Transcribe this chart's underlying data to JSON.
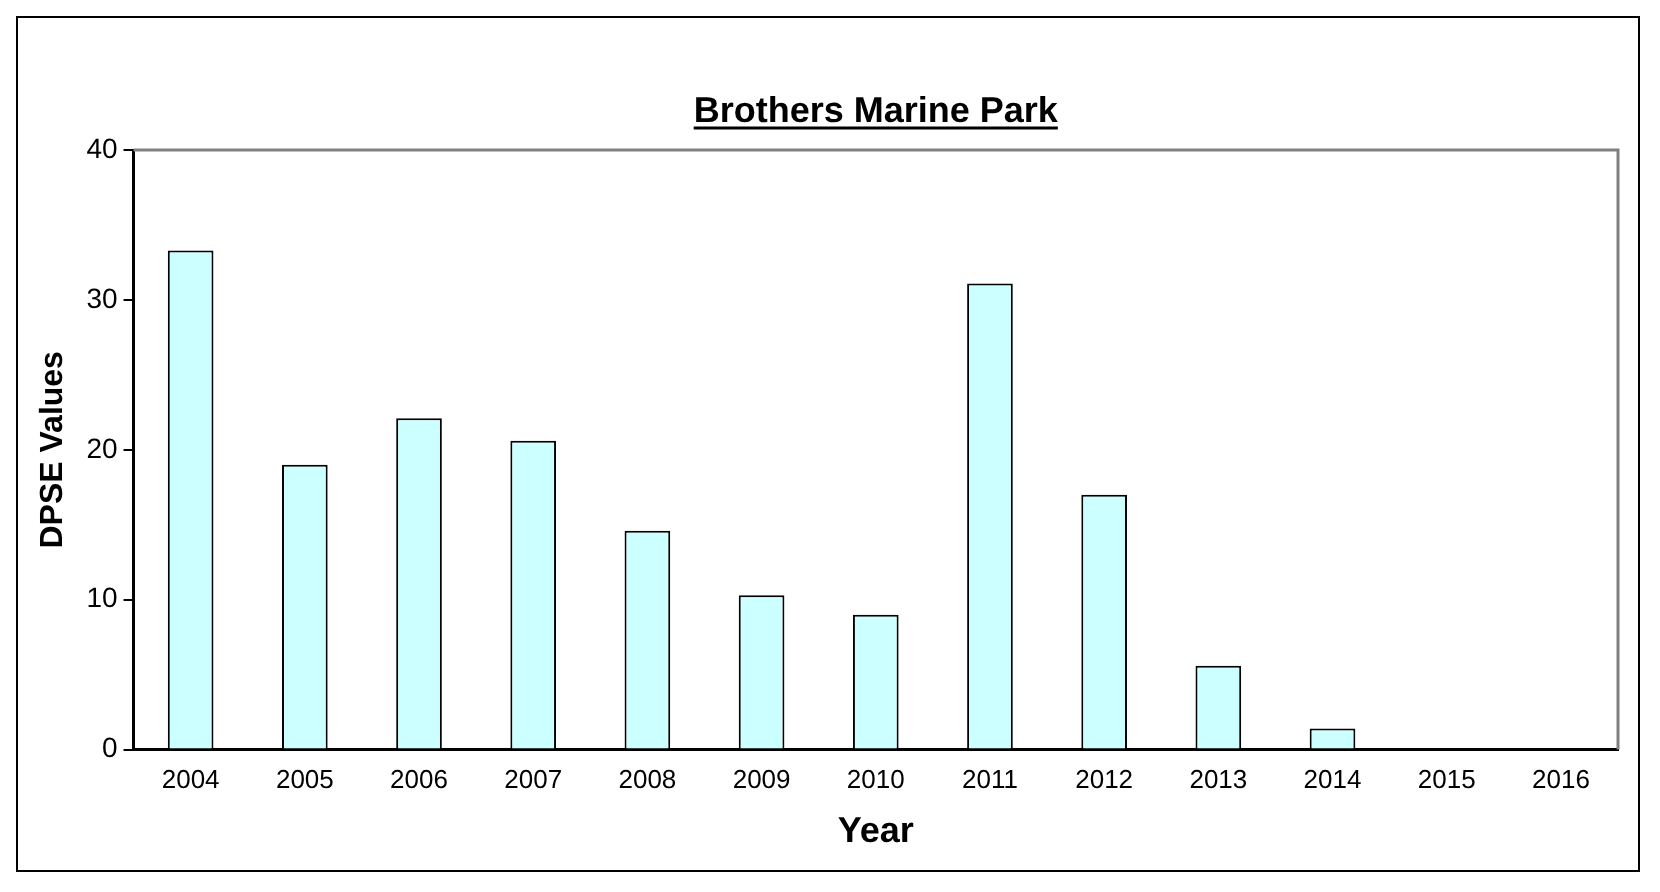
{
  "chart_data": {
    "type": "bar",
    "title": "Brothers Marine Park",
    "xlabel": "Year",
    "ylabel": "DPSE Values",
    "categories": [
      "2004",
      "2005",
      "2006",
      "2007",
      "2008",
      "2009",
      "2010",
      "2011",
      "2012",
      "2013",
      "2014",
      "2015",
      "2016"
    ],
    "values": [
      33.3,
      19.0,
      22.1,
      20.6,
      14.6,
      10.3,
      9.0,
      31.1,
      17.0,
      5.6,
      1.4,
      0,
      0
    ],
    "color": "#ccffff",
    "ylim": [
      0,
      40
    ],
    "yticks": [
      0,
      10,
      20,
      30,
      40
    ],
    "grid": false,
    "legend": false
  }
}
